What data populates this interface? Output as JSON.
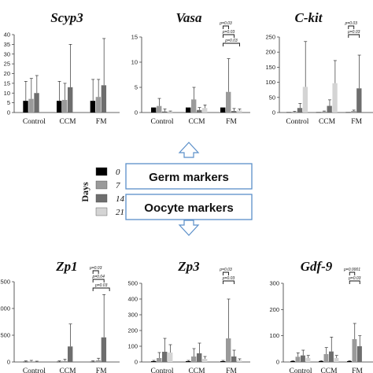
{
  "legend": {
    "title": "Days",
    "items": [
      {
        "label": "0",
        "color": "#000000"
      },
      {
        "label": "7",
        "color": "#9a9a9a"
      },
      {
        "label": "14",
        "color": "#6e6e6e"
      },
      {
        "label": "21",
        "color": "#d4d4d4"
      }
    ]
  },
  "markers": {
    "germ": "Germ markers",
    "oocyte": "Oocyte markers"
  },
  "chart_data": [
    {
      "type": "bar",
      "title": "Scyp3",
      "categories": [
        "Control",
        "CCM",
        "FM"
      ],
      "ylim": [
        0,
        40
      ],
      "yticks": [
        "0",
        "5",
        "10",
        "15",
        "20",
        "25",
        "30",
        "35",
        "40"
      ],
      "series": [
        {
          "name": "0",
          "values": [
            6,
            6,
            6
          ],
          "errors": [
            10,
            10,
            11
          ]
        },
        {
          "name": "7",
          "values": [
            7,
            6.5,
            8
          ],
          "errors": [
            10.5,
            8.5,
            9
          ]
        },
        {
          "name": "14",
          "values": [
            10,
            13,
            14
          ],
          "errors": [
            9,
            22,
            24
          ]
        },
        {
          "name": "21",
          "values": [
            0,
            0,
            0
          ],
          "errors": [
            0,
            0,
            0
          ]
        }
      ],
      "significance": []
    },
    {
      "type": "bar",
      "title": "Vasa",
      "categories": [
        "Control",
        "CCM",
        "FM"
      ],
      "ylim": [
        0,
        15
      ],
      "yticks": [
        "0",
        "5",
        "10",
        "15"
      ],
      "series": [
        {
          "name": "0",
          "values": [
            1,
            1,
            1
          ],
          "errors": [
            0,
            0,
            0
          ]
        },
        {
          "name": "7",
          "values": [
            1.3,
            2.6,
            4.1
          ],
          "errors": [
            1.5,
            2.4,
            6.6
          ]
        },
        {
          "name": "14",
          "values": [
            0.2,
            0.5,
            0.3
          ],
          "errors": [
            0.5,
            0.5,
            0.5
          ]
        },
        {
          "name": "21",
          "values": [
            0.2,
            0.9,
            0.4
          ],
          "errors": [
            0.1,
            0.6,
            0.3
          ]
        }
      ],
      "significance": [
        {
          "label": "p=0.03",
          "group": 2,
          "from": 0,
          "to": 1,
          "level": 0
        },
        {
          "label": "p=0.03",
          "group": 2,
          "from": 0,
          "to": 2,
          "level": 1
        },
        {
          "label": "p=0.03",
          "group": 2,
          "from": 0,
          "to": 3,
          "level": 2
        }
      ]
    },
    {
      "type": "bar",
      "title": "C-kit",
      "categories": [
        "Control",
        "CCM",
        "FM"
      ],
      "ylim": [
        0,
        250
      ],
      "yticks": [
        "0",
        "50",
        "100",
        "150",
        "200",
        "250"
      ],
      "series": [
        {
          "name": "0",
          "values": [
            1,
            1,
            1
          ],
          "errors": [
            0,
            0,
            0
          ]
        },
        {
          "name": "7",
          "values": [
            2,
            3,
            5
          ],
          "errors": [
            2,
            2,
            3
          ]
        },
        {
          "name": "14",
          "values": [
            15,
            22,
            80
          ],
          "errors": [
            15,
            20,
            110
          ]
        },
        {
          "name": "21",
          "values": [
            85,
            97,
            0
          ],
          "errors": [
            150,
            75,
            0
          ]
        }
      ],
      "significance": [
        {
          "label": "p=0.03",
          "group": 2,
          "from": 0,
          "to": 1,
          "level": 0
        },
        {
          "label": "p=0.03",
          "group": 2,
          "from": 0,
          "to": 2,
          "level": 1
        }
      ]
    },
    {
      "type": "bar",
      "title": "Zp1",
      "categories": [
        "Control",
        "CCM",
        "FM"
      ],
      "ylim": [
        0,
        1500
      ],
      "yticks": [
        "0",
        "500",
        "1000",
        "1500"
      ],
      "series": [
        {
          "name": "0",
          "values": [
            5,
            5,
            5
          ],
          "errors": [
            15,
            15,
            15
          ]
        },
        {
          "name": "7",
          "values": [
            10,
            20,
            30
          ],
          "errors": [
            20,
            30,
            40
          ]
        },
        {
          "name": "14",
          "values": [
            5,
            290,
            460
          ],
          "errors": [
            10,
            420,
            800
          ]
        },
        {
          "name": "21",
          "values": [
            0,
            0,
            0
          ],
          "errors": [
            0,
            0,
            0
          ]
        }
      ],
      "significance": [
        {
          "label": "p=0.03",
          "group": 2,
          "from": 0,
          "to": 1,
          "level": 0
        },
        {
          "label": "p=0.04",
          "group": 2,
          "from": 0,
          "to": 2,
          "level": 1
        },
        {
          "label": "p=0.03",
          "group": 2,
          "from": 0,
          "to": 3,
          "level": 2
        }
      ]
    },
    {
      "type": "bar",
      "title": "Zp3",
      "categories": [
        "Control",
        "CCM",
        "FM"
      ],
      "ylim": [
        0,
        500
      ],
      "yticks": [
        "0",
        "100",
        "200",
        "300",
        "400",
        "500"
      ],
      "series": [
        {
          "name": "0",
          "values": [
            5,
            5,
            5
          ],
          "errors": [
            5,
            5,
            5
          ]
        },
        {
          "name": "7",
          "values": [
            25,
            35,
            150
          ],
          "errors": [
            35,
            50,
            250
          ]
        },
        {
          "name": "14",
          "values": [
            65,
            55,
            35
          ],
          "errors": [
            85,
            65,
            40
          ]
        },
        {
          "name": "21",
          "values": [
            60,
            20,
            10
          ],
          "errors": [
            50,
            15,
            10
          ]
        }
      ],
      "significance": [
        {
          "label": "p=0.03",
          "group": 2,
          "from": 0,
          "to": 1,
          "level": 0
        },
        {
          "label": "p=0.03",
          "group": 2,
          "from": 0,
          "to": 2,
          "level": 1
        }
      ]
    },
    {
      "type": "bar",
      "title": "Gdf-9",
      "categories": [
        "Control",
        "CCM",
        "FM"
      ],
      "ylim": [
        0,
        300
      ],
      "yticks": [
        "0",
        "100",
        "200",
        "300"
      ],
      "series": [
        {
          "name": "0",
          "values": [
            3,
            3,
            3
          ],
          "errors": [
            2,
            2,
            2
          ]
        },
        {
          "name": "7",
          "values": [
            20,
            30,
            87
          ],
          "errors": [
            15,
            25,
            60
          ]
        },
        {
          "name": "14",
          "values": [
            25,
            40,
            60
          ],
          "errors": [
            20,
            55,
            40
          ]
        },
        {
          "name": "21",
          "values": [
            15,
            15,
            0
          ],
          "errors": [
            10,
            10,
            0
          ]
        }
      ],
      "significance": [
        {
          "label": "p=0.0001",
          "group": 2,
          "from": 0,
          "to": 1,
          "level": 0
        },
        {
          "label": "p=0.03",
          "group": 2,
          "from": 0,
          "to": 2,
          "level": 1
        }
      ]
    }
  ]
}
